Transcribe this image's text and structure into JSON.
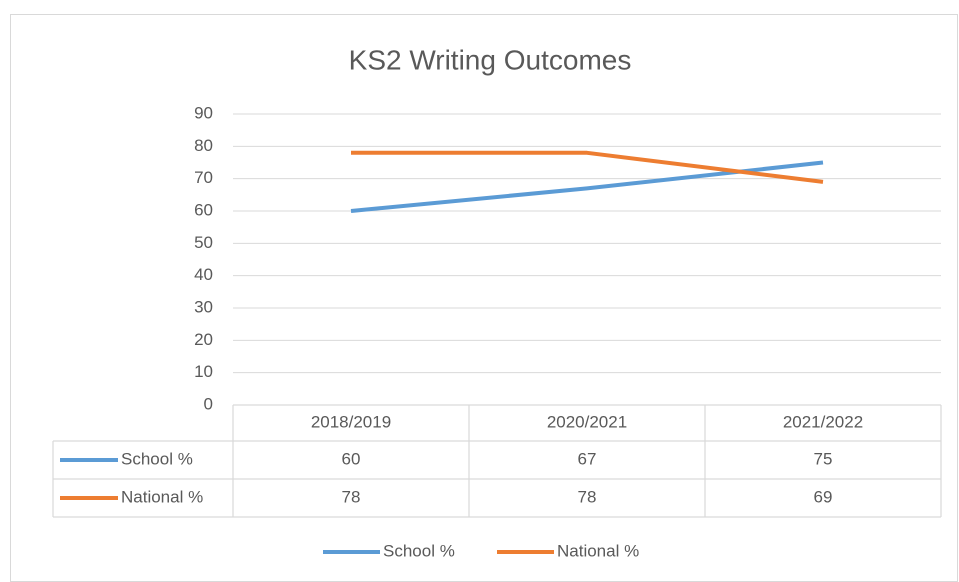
{
  "chart_data": {
    "type": "line",
    "title": "KS2 Writing Outcomes",
    "categories": [
      "2018/2019",
      "2020/2021",
      "2021/2022"
    ],
    "series": [
      {
        "name": "School %",
        "color": "#5b9bd5",
        "values": [
          60,
          67,
          75
        ]
      },
      {
        "name": "National %",
        "color": "#ed7d31",
        "values": [
          78,
          78,
          69
        ]
      }
    ],
    "ylim": [
      0,
      90
    ],
    "yticks": [
      0,
      10,
      20,
      30,
      40,
      50,
      60,
      70,
      80,
      90
    ],
    "grid": true,
    "legend": "bottom",
    "data_table": true
  }
}
